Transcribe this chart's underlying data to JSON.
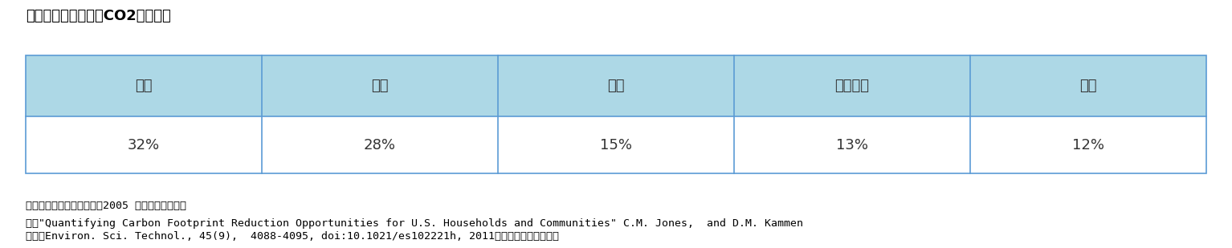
{
  "title": "図表４．アメリカのCO2排出占率",
  "headers": [
    "輸送",
    "住居",
    "食料",
    "サービス",
    "モノ"
  ],
  "values": [
    "32%",
    "28%",
    "15%",
    "13%",
    "12%"
  ],
  "header_bg_color": "#add8e6",
  "value_bg_color": "#ffffff",
  "border_color": "#5b9bd5",
  "text_color": "#333333",
  "title_color": "#000000",
  "note1": "＊　エネルギー分を含む。2005 年のデータより。",
  "note2": "※　\"Quantifying Carbon Footprint Reduction Opportunities for U.S. Households and Communities\" C.M. Jones,  and D.M. Kammen",
  "note3": "　　（Environ. Sci. Technol., 45(9),  4088-4095, doi:10.1021/es102221h, 2011）をもとに、筆者作成",
  "header_fontsize": 13,
  "value_fontsize": 13,
  "title_fontsize": 13,
  "note_fontsize": 9.5
}
